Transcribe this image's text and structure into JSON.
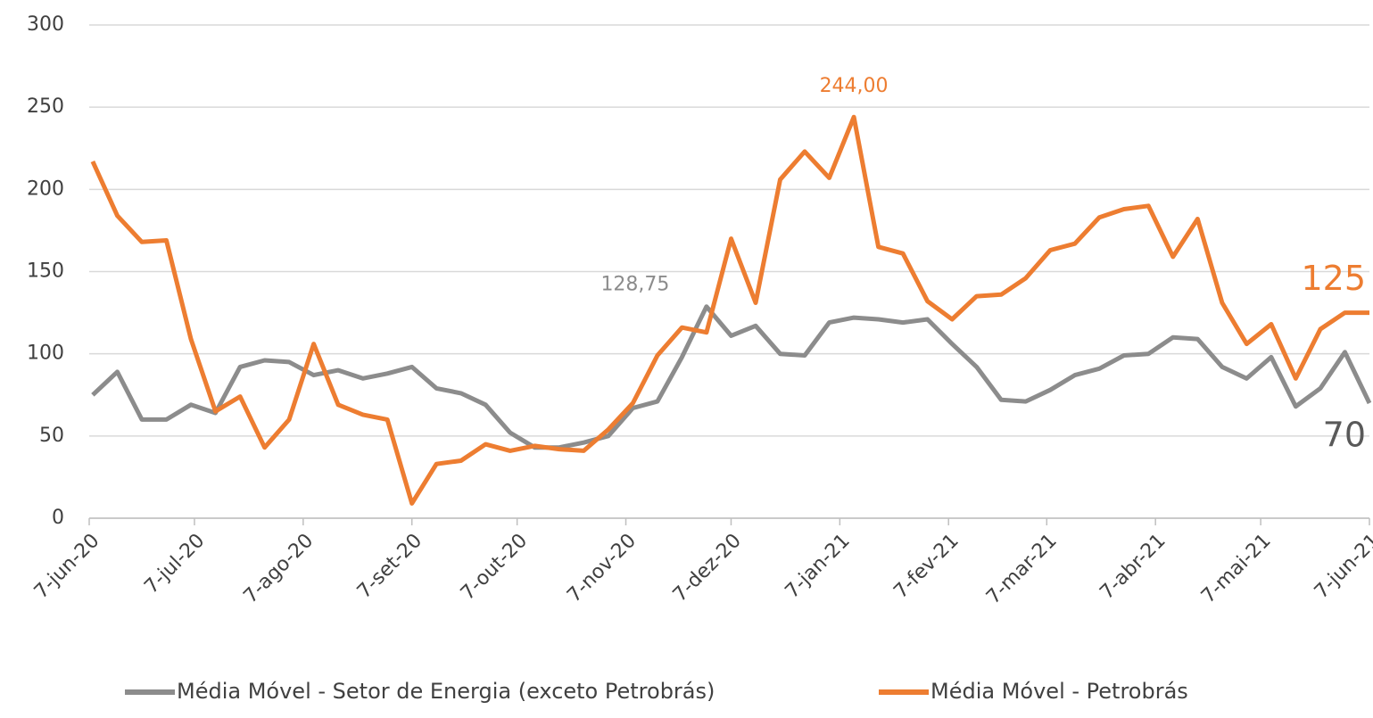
{
  "chart_data": {
    "type": "line",
    "x": [
      "2020-06-08",
      "2020-06-15",
      "2020-06-22",
      "2020-06-29",
      "2020-07-06",
      "2020-07-13",
      "2020-07-20",
      "2020-07-27",
      "2020-08-03",
      "2020-08-10",
      "2020-08-17",
      "2020-08-24",
      "2020-08-31",
      "2020-09-07",
      "2020-09-14",
      "2020-09-21",
      "2020-09-28",
      "2020-10-05",
      "2020-10-12",
      "2020-10-19",
      "2020-10-26",
      "2020-11-02",
      "2020-11-09",
      "2020-11-16",
      "2020-11-23",
      "2020-11-30",
      "2020-12-07",
      "2020-12-14",
      "2020-12-21",
      "2020-12-28",
      "2021-01-04",
      "2021-01-11",
      "2021-01-18",
      "2021-01-25",
      "2021-02-01",
      "2021-02-08",
      "2021-02-15",
      "2021-02-22",
      "2021-03-01",
      "2021-03-08",
      "2021-03-15",
      "2021-03-22",
      "2021-03-29",
      "2021-04-05",
      "2021-04-12",
      "2021-04-19",
      "2021-04-26",
      "2021-05-03",
      "2021-05-10",
      "2021-05-17",
      "2021-05-24",
      "2021-05-31",
      "2021-06-07"
    ],
    "series": [
      {
        "name": "Média Móvel - Setor de Energia (exceto Petrobrás)",
        "color": "#8c8c8c",
        "values": [
          75,
          89,
          60,
          60,
          69,
          64,
          92,
          96,
          95,
          87,
          90,
          85,
          88,
          92,
          79,
          76,
          69,
          52,
          43,
          43,
          46,
          50,
          67,
          71,
          98,
          128.75,
          111,
          117,
          100,
          99,
          119,
          122,
          121,
          119,
          121,
          106,
          92,
          72,
          71,
          78,
          87,
          91,
          99,
          100,
          110,
          109,
          92,
          85,
          98,
          68,
          79,
          101,
          70
        ],
        "value_labels": [
          null,
          null,
          null,
          null,
          null,
          null,
          null,
          null,
          null,
          null,
          null,
          null,
          null,
          null,
          null,
          null,
          null,
          null,
          null,
          null,
          null,
          null,
          null,
          null,
          null,
          "128,75",
          null,
          null,
          null,
          null,
          null,
          null,
          null,
          null,
          null,
          null,
          null,
          null,
          null,
          null,
          null,
          null,
          null,
          null,
          null,
          null,
          null,
          null,
          null,
          null,
          null,
          null,
          "70"
        ]
      },
      {
        "name": "Média Móvel - Petrobrás",
        "color": "#ed7d31",
        "values": [
          217,
          184,
          168,
          169,
          109,
          65,
          74,
          43,
          60,
          106,
          69,
          63,
          60,
          9,
          33,
          35,
          45,
          41,
          44,
          42,
          41,
          54,
          70,
          99,
          116,
          113,
          170,
          131,
          206,
          223,
          207,
          244,
          165,
          161,
          132,
          121,
          135,
          136,
          146,
          163,
          167,
          183,
          188,
          190,
          159,
          182,
          131,
          106,
          118,
          85,
          115,
          125,
          125
        ],
        "value_labels": [
          null,
          null,
          null,
          null,
          null,
          null,
          null,
          null,
          null,
          null,
          null,
          null,
          null,
          null,
          null,
          null,
          null,
          null,
          null,
          null,
          null,
          null,
          null,
          null,
          null,
          null,
          null,
          null,
          null,
          null,
          null,
          "244,00",
          null,
          null,
          null,
          null,
          null,
          null,
          null,
          null,
          null,
          null,
          null,
          null,
          null,
          null,
          null,
          null,
          null,
          null,
          null,
          null,
          "125"
        ]
      }
    ],
    "xlim": [
      "2020-06-07",
      "2021-06-07"
    ],
    "xticks": [
      {
        "value": "2020-06-07",
        "label": "7-jun-20"
      },
      {
        "value": "2020-07-07",
        "label": "7-jul-20"
      },
      {
        "value": "2020-08-07",
        "label": "7-ago-20"
      },
      {
        "value": "2020-09-07",
        "label": "7-set-20"
      },
      {
        "value": "2020-10-07",
        "label": "7-out-20"
      },
      {
        "value": "2020-11-07",
        "label": "7-nov-20"
      },
      {
        "value": "2020-12-07",
        "label": "7-dez-20"
      },
      {
        "value": "2021-01-07",
        "label": "7-jan-21"
      },
      {
        "value": "2021-02-07",
        "label": "7-fev-21"
      },
      {
        "value": "2021-03-07",
        "label": "7-mar-21"
      },
      {
        "value": "2021-04-07",
        "label": "7-abr-21"
      },
      {
        "value": "2021-05-07",
        "label": "7-mai-21"
      },
      {
        "value": "2021-06-07",
        "label": "7-jun-21"
      }
    ],
    "ylim": [
      0,
      300
    ],
    "yticks": [
      0,
      50,
      100,
      150,
      200,
      250,
      300
    ],
    "grid": true,
    "legend": "bottom"
  }
}
